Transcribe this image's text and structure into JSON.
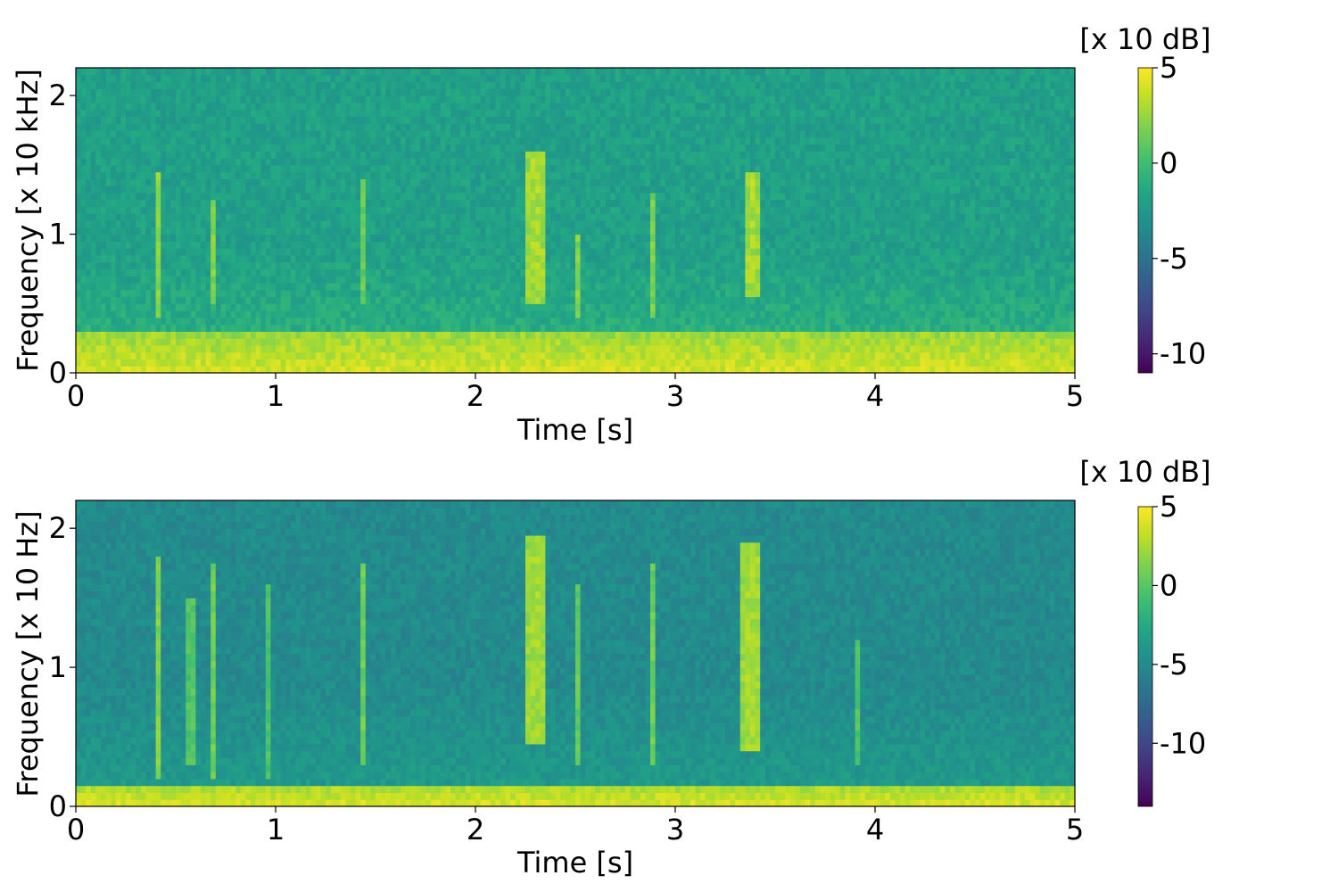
{
  "chart_data": [
    {
      "type": "heatmap",
      "title": "",
      "xlabel": "Time [s]",
      "ylabel": "Frequency [x 10 kHz]",
      "xlim": [
        0,
        5
      ],
      "ylim": [
        0,
        2.2
      ],
      "x_ticks": [
        0,
        1,
        2,
        3,
        4,
        5
      ],
      "x_tick_labels": [
        "0",
        "1",
        "2",
        "3",
        "4",
        "5"
      ],
      "y_ticks": [
        0,
        1,
        2
      ],
      "y_tick_labels": [
        "0",
        "1",
        "2"
      ],
      "colormap": "viridis",
      "colorbar": {
        "label": "[x 10 dB]",
        "range": [
          -11,
          5
        ],
        "ticks": [
          5,
          0,
          -5,
          -10
        ],
        "tick_labels": [
          "5",
          "0",
          "-5",
          "-10"
        ]
      },
      "background_level": -2,
      "low_freq_band": {
        "freq_max": 0.3,
        "level": 4
      },
      "events": [
        {
          "time": 0.42,
          "width": 0.03,
          "freq_low": 0.4,
          "freq_high": 1.45,
          "level": 2.5
        },
        {
          "time": 0.69,
          "width": 0.03,
          "freq_low": 0.5,
          "freq_high": 1.25,
          "level": 2
        },
        {
          "time": 1.43,
          "width": 0.03,
          "freq_low": 0.5,
          "freq_high": 1.4,
          "level": 1.5
        },
        {
          "time": 2.3,
          "width": 0.1,
          "freq_low": 0.5,
          "freq_high": 1.6,
          "level": 3
        },
        {
          "time": 2.51,
          "width": 0.03,
          "freq_low": 0.4,
          "freq_high": 1.0,
          "level": 2
        },
        {
          "time": 2.88,
          "width": 0.03,
          "freq_low": 0.4,
          "freq_high": 1.3,
          "level": 2
        },
        {
          "time": 3.38,
          "width": 0.08,
          "freq_low": 0.55,
          "freq_high": 1.45,
          "level": 3
        }
      ]
    },
    {
      "type": "heatmap",
      "title": "",
      "xlabel": "Time [s]",
      "ylabel": "Frequency [x 10 Hz]",
      "xlim": [
        0,
        5
      ],
      "ylim": [
        0,
        2.2
      ],
      "x_ticks": [
        0,
        1,
        2,
        3,
        4,
        5
      ],
      "x_tick_labels": [
        "0",
        "1",
        "2",
        "3",
        "4",
        "5"
      ],
      "y_ticks": [
        0,
        1,
        2
      ],
      "y_tick_labels": [
        "0",
        "1",
        "2"
      ],
      "colormap": "viridis",
      "colorbar": {
        "label": "[x 10 dB]",
        "range": [
          -14,
          5
        ],
        "ticks": [
          5,
          0,
          -5,
          -10
        ],
        "tick_labels": [
          "5",
          "0",
          "-5",
          "-10"
        ]
      },
      "background_level": -5,
      "low_freq_band": {
        "freq_max": 0.15,
        "level": 4
      },
      "events": [
        {
          "time": 0.42,
          "width": 0.03,
          "freq_low": 0.2,
          "freq_high": 1.8,
          "level": 1.5
        },
        {
          "time": 0.58,
          "width": 0.05,
          "freq_low": 0.3,
          "freq_high": 1.5,
          "level": 0
        },
        {
          "time": 0.69,
          "width": 0.03,
          "freq_low": 0.2,
          "freq_high": 1.75,
          "level": 1
        },
        {
          "time": 0.96,
          "width": 0.04,
          "freq_low": 0.2,
          "freq_high": 1.6,
          "level": -0.5
        },
        {
          "time": 1.43,
          "width": 0.03,
          "freq_low": 0.3,
          "freq_high": 1.75,
          "level": 1
        },
        {
          "time": 2.3,
          "width": 0.1,
          "freq_low": 0.45,
          "freq_high": 1.95,
          "level": 2.5
        },
        {
          "time": 2.51,
          "width": 0.03,
          "freq_low": 0.3,
          "freq_high": 1.6,
          "level": 0.5
        },
        {
          "time": 2.88,
          "width": 0.03,
          "freq_low": 0.3,
          "freq_high": 1.75,
          "level": 1
        },
        {
          "time": 3.38,
          "width": 0.1,
          "freq_low": 0.4,
          "freq_high": 1.9,
          "level": 2.5
        },
        {
          "time": 3.92,
          "width": 0.03,
          "freq_low": 0.3,
          "freq_high": 1.2,
          "level": 0
        }
      ]
    }
  ]
}
